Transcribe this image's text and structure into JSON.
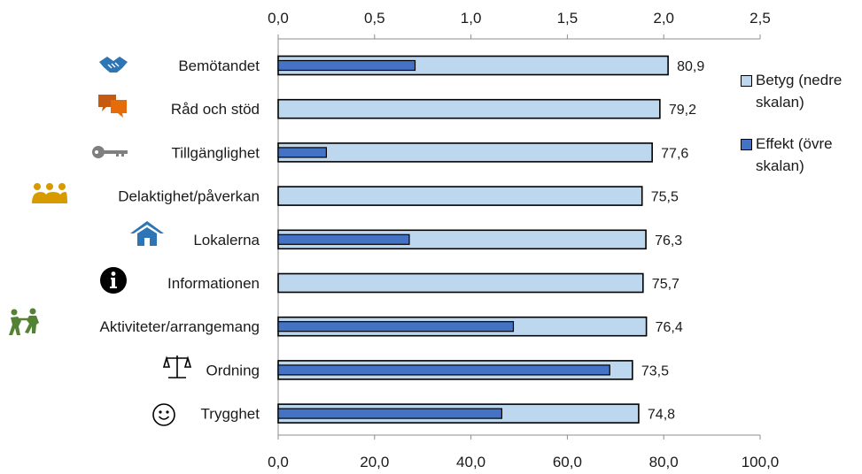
{
  "chart_data": {
    "type": "bar",
    "orientation": "horizontal",
    "categories": [
      "Bemötandet",
      "Råd och stöd",
      "Tillgänglighet",
      "Delaktighet/påverkan",
      "Lokalerna",
      "Informationen",
      "Aktiviteter/arrangemang",
      "Ordning",
      "Trygghet"
    ],
    "category_icons": [
      "handshake-icon",
      "speech-bubbles-icon",
      "key-icon",
      "group-icon",
      "house-icon",
      "info-icon",
      "people-icon",
      "scales-icon",
      "smiley-icon"
    ],
    "series": [
      {
        "name": "Betyg (nedre skalan)",
        "axis": "bottom",
        "color": "#bdd7ee",
        "values": [
          80.9,
          79.2,
          77.6,
          75.5,
          76.3,
          75.7,
          76.4,
          73.5,
          74.8
        ],
        "labels": [
          "80,9",
          "79,2",
          "77,6",
          "75,5",
          "76,3",
          "75,7",
          "76,4",
          "73,5",
          "74,8"
        ]
      },
      {
        "name": "Effekt (övre skalan)",
        "axis": "top",
        "color": "#4472c4",
        "values": [
          0.71,
          null,
          0.25,
          null,
          0.68,
          null,
          1.22,
          1.72,
          1.16
        ]
      }
    ],
    "bottom_axis": {
      "min": 0,
      "max": 100,
      "ticks": [
        "0,0",
        "20,0",
        "40,0",
        "60,0",
        "80,0",
        "100,0"
      ]
    },
    "top_axis": {
      "min": 0,
      "max": 2.5,
      "ticks": [
        "0,0",
        "0,5",
        "1,0",
        "1,5",
        "2,0",
        "2,5"
      ]
    },
    "legend_position": "right",
    "grid": false
  }
}
